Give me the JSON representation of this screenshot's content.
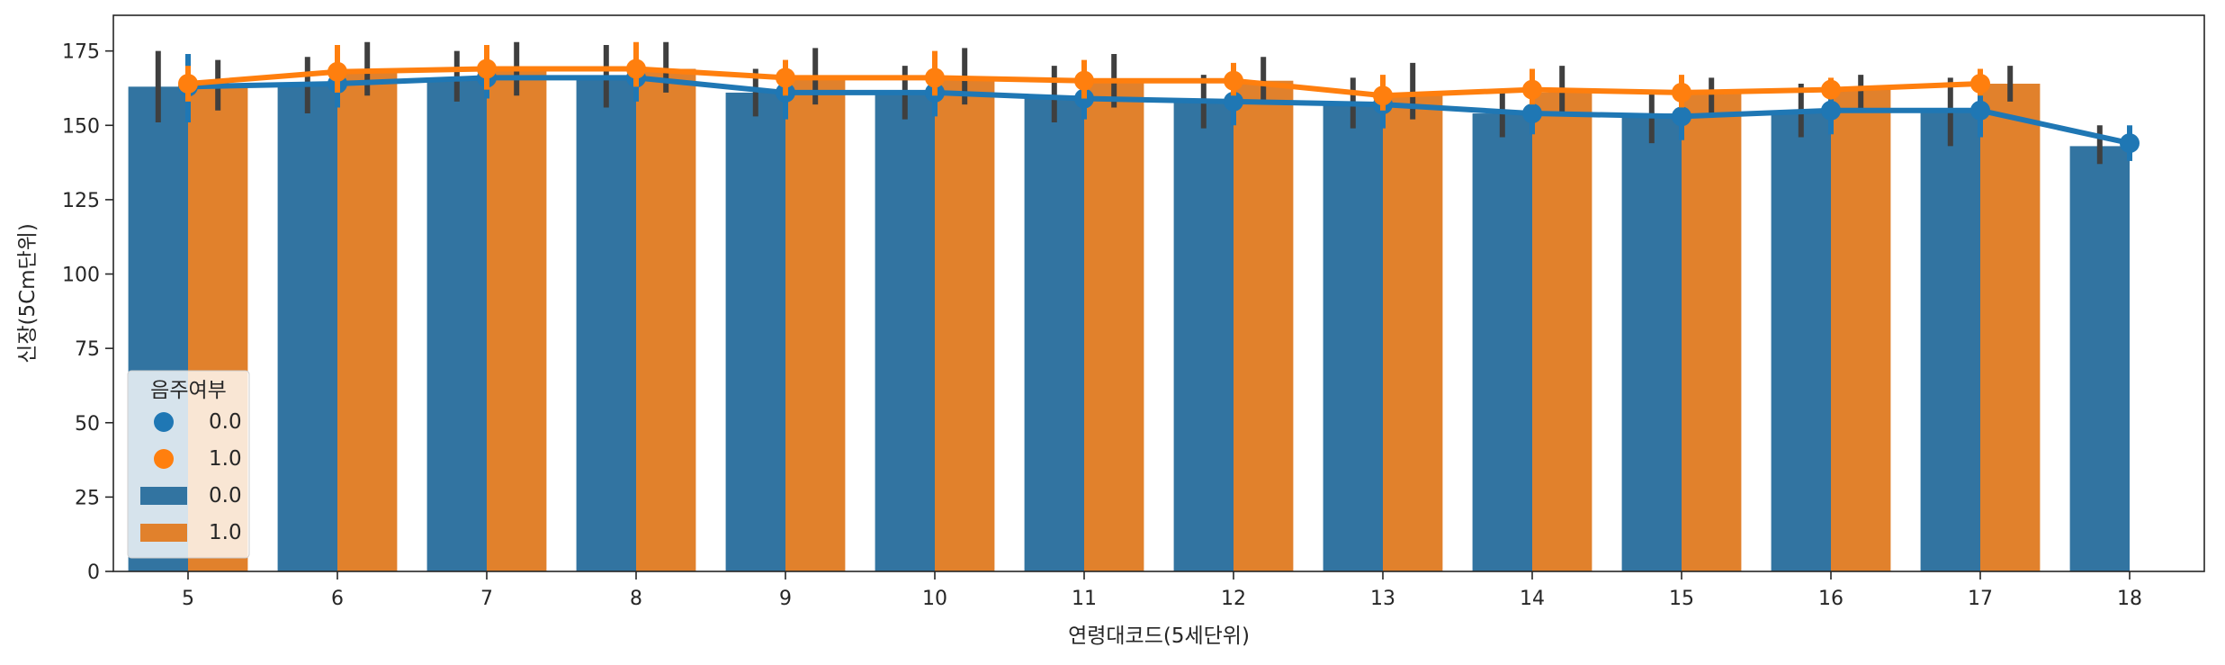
{
  "chart_data": {
    "type": "bar",
    "title": "",
    "xlabel": "연령대코드(5세단위)",
    "ylabel": "신장(5Cm단위)",
    "ylim": [
      0,
      187
    ],
    "yticks": [
      0,
      25,
      50,
      75,
      100,
      125,
      150,
      175
    ],
    "categories": [
      "5",
      "6",
      "7",
      "8",
      "9",
      "10",
      "11",
      "12",
      "13",
      "14",
      "15",
      "16",
      "17",
      "18"
    ],
    "grid": false,
    "colors": {
      "s0": "#3274a1",
      "s1": "#e1812c",
      "point0": "#1f77b4",
      "point1": "#ff7f0e",
      "err": "#3f3f3f"
    },
    "bar_series": [
      {
        "name": "0.0",
        "values": [
          163,
          164,
          166,
          166,
          161,
          161,
          160,
          158,
          157,
          154,
          154,
          155,
          155,
          143
        ],
        "err_low": [
          151,
          154,
          158,
          156,
          153,
          152,
          151,
          149,
          149,
          146,
          144,
          146,
          143,
          137
        ],
        "err_high": [
          175,
          173,
          175,
          177,
          169,
          170,
          170,
          167,
          166,
          161,
          162,
          164,
          166,
          150
        ]
      },
      {
        "name": "1.0",
        "values": [
          164,
          168,
          169,
          169,
          166,
          166,
          165,
          165,
          160,
          161,
          161,
          162,
          164,
          null
        ],
        "err_low": [
          155,
          160,
          160,
          161,
          157,
          157,
          156,
          157,
          152,
          153,
          154,
          155,
          158,
          null
        ],
        "err_high": [
          172,
          178,
          178,
          178,
          176,
          176,
          174,
          173,
          171,
          170,
          166,
          167,
          170,
          null
        ]
      }
    ],
    "point_series": [
      {
        "name": "0.0",
        "values": [
          163,
          164,
          166,
          166,
          161,
          161,
          159,
          158,
          157,
          154,
          153,
          155,
          155,
          144
        ],
        "err_low": [
          151,
          156,
          159,
          158,
          152,
          153,
          152,
          150,
          149,
          147,
          145,
          147,
          146,
          138
        ],
        "err_high": [
          174,
          171,
          173,
          174,
          168,
          170,
          167,
          165,
          165,
          161,
          161,
          163,
          163,
          150
        ]
      },
      {
        "name": "1.0",
        "values": [
          164,
          168,
          169,
          169,
          166,
          166,
          165,
          165,
          160,
          162,
          161,
          162,
          164,
          null
        ],
        "err_low": [
          158,
          161,
          162,
          163,
          160,
          160,
          159,
          160,
          155,
          157,
          156,
          159,
          160,
          null
        ],
        "err_high": [
          170,
          177,
          177,
          178,
          172,
          175,
          172,
          171,
          167,
          169,
          167,
          166,
          169,
          null
        ]
      }
    ],
    "legend": {
      "title": "음주여부",
      "placement": "lower-left",
      "entries": [
        {
          "kind": "point",
          "label": "0.0"
        },
        {
          "kind": "point",
          "label": "1.0"
        },
        {
          "kind": "bar",
          "label": "0.0"
        },
        {
          "kind": "bar",
          "label": "1.0"
        }
      ]
    }
  }
}
